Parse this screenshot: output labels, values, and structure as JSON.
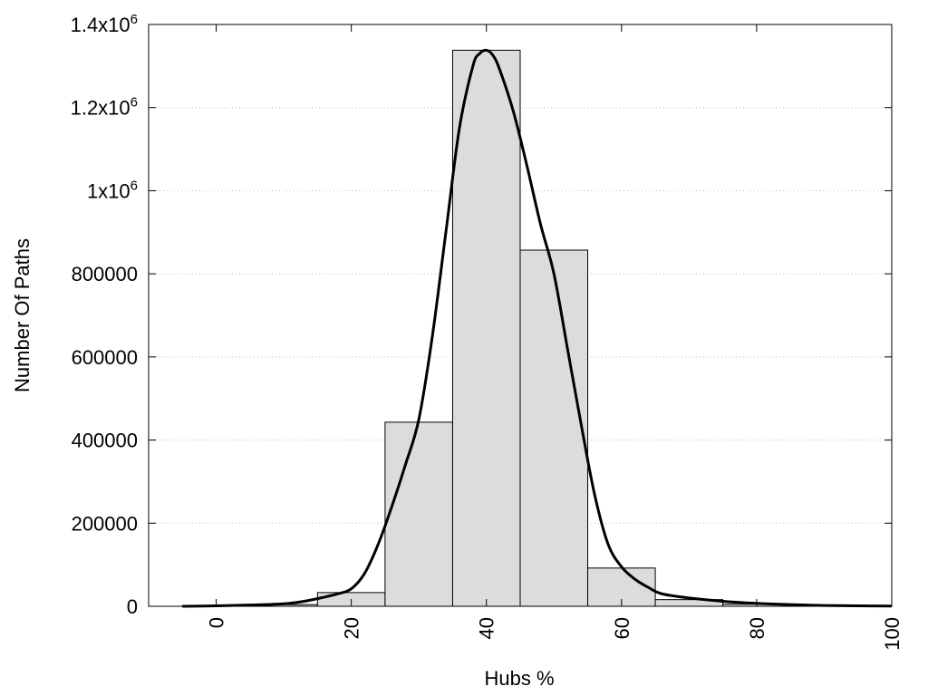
{
  "chart_data": {
    "type": "bar",
    "title": "",
    "xlabel": "Hubs %",
    "ylabel": "Number Of Paths",
    "xlim": [
      -10,
      100
    ],
    "ylim": [
      0,
      1400000
    ],
    "grid": {
      "x": false,
      "y": true,
      "style": "dotted"
    },
    "bar_color": "#dcdcdc",
    "curve_color": "#000000",
    "x_ticks": [
      0,
      20,
      40,
      60,
      80,
      100
    ],
    "x_tick_labels": [
      "0",
      "20",
      "40",
      "60",
      "80",
      "100"
    ],
    "y_ticks": [
      0,
      200000,
      400000,
      600000,
      800000,
      1000000,
      1200000,
      1400000
    ],
    "y_tick_labels": [
      {
        "text": "0"
      },
      {
        "text": "200000"
      },
      {
        "text": "400000"
      },
      {
        "text": "600000"
      },
      {
        "text": "800000"
      },
      {
        "base": "1x10",
        "exp": "6"
      },
      {
        "base": "1.2x10",
        "exp": "6"
      },
      {
        "base": "1.4x10",
        "exp": "6"
      }
    ],
    "bar_width": 10,
    "bars": [
      {
        "x": 0,
        "value": 1500
      },
      {
        "x": 10,
        "value": 4000
      },
      {
        "x": 20,
        "value": 33000
      },
      {
        "x": 30,
        "value": 443000
      },
      {
        "x": 40,
        "value": 1338000
      },
      {
        "x": 50,
        "value": 857000
      },
      {
        "x": 60,
        "value": 92000
      },
      {
        "x": 70,
        "value": 16000
      },
      {
        "x": 80,
        "value": 5000
      },
      {
        "x": 90,
        "value": 1500
      }
    ],
    "curve": {
      "x": [
        -5,
        0,
        5,
        10,
        13,
        16,
        18,
        20,
        22,
        24,
        26,
        28,
        30,
        32,
        34,
        36,
        38,
        39,
        40,
        41,
        42,
        44,
        46,
        48,
        50,
        52,
        54,
        56,
        58,
        60,
        62,
        64,
        66,
        70,
        75,
        80,
        85,
        90,
        95,
        100
      ],
      "y": [
        0,
        1000,
        3000,
        6000,
        12000,
        22000,
        30000,
        42000,
        80000,
        150000,
        240000,
        340000,
        450000,
        650000,
        900000,
        1150000,
        1300000,
        1330000,
        1338000,
        1325000,
        1290000,
        1190000,
        1060000,
        920000,
        800000,
        620000,
        440000,
        270000,
        150000,
        95000,
        65000,
        45000,
        30000,
        20000,
        12000,
        7000,
        4000,
        2000,
        1000,
        500
      ]
    }
  }
}
